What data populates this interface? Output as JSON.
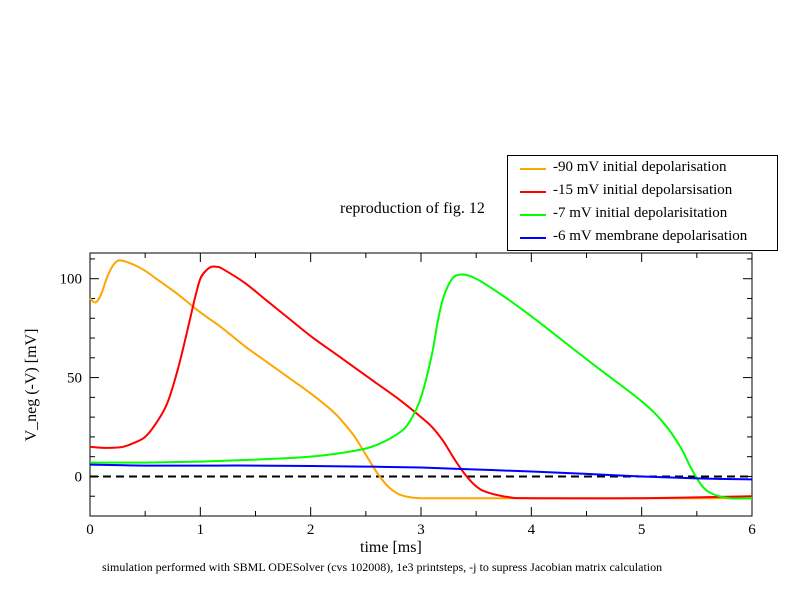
{
  "chart_data": {
    "type": "line",
    "title": "reproduction of fig. 12",
    "xlabel": "time [ms]",
    "ylabel": "V_neg (-V) [mV]",
    "caption": "simulation performed with SBML ODESolver (cvs 102008), 1e3 printsteps, -j to supress Jacobian matrix calculation",
    "xlim": [
      0,
      6
    ],
    "ylim": [
      -20,
      113
    ],
    "xticks": [
      0,
      1,
      2,
      3,
      4,
      5,
      6
    ],
    "yticks": [
      0,
      50,
      100
    ],
    "grid": false,
    "legend_position": "top-right",
    "reference_line": {
      "y": 0,
      "style": "dashed",
      "color": "#000000"
    },
    "series": [
      {
        "name": "-90 mV initial depolarisation",
        "color": "#ffa500",
        "x": [
          0,
          0.05,
          0.1,
          0.15,
          0.2,
          0.25,
          0.3,
          0.4,
          0.5,
          0.6,
          0.7,
          0.8,
          1.0,
          1.2,
          1.4,
          1.6,
          1.8,
          2.0,
          2.2,
          2.3,
          2.4,
          2.5,
          2.6,
          2.7,
          2.8,
          2.9,
          3.0,
          3.2,
          3.6,
          4.0,
          5.0,
          6.0
        ],
        "y": [
          90,
          88,
          92,
          100,
          106,
          109,
          109,
          107,
          104,
          100,
          96,
          92,
          83,
          75,
          66,
          58,
          50,
          42,
          33,
          27,
          20,
          11,
          2,
          -5,
          -9,
          -10.5,
          -11,
          -11,
          -11,
          -11,
          -11,
          -11
        ]
      },
      {
        "name": "-15 mV initial depolarsisation",
        "color": "#ff0000",
        "x": [
          0,
          0.1,
          0.2,
          0.3,
          0.4,
          0.5,
          0.6,
          0.7,
          0.8,
          0.9,
          0.95,
          1.0,
          1.05,
          1.1,
          1.15,
          1.2,
          1.4,
          1.6,
          1.8,
          2.0,
          2.2,
          2.4,
          2.6,
          2.8,
          3.0,
          3.1,
          3.2,
          3.3,
          3.4,
          3.5,
          3.6,
          3.8,
          4.0,
          5.0,
          6.0
        ],
        "y": [
          15,
          14.5,
          14.5,
          15,
          17,
          20,
          27,
          37,
          55,
          78,
          90,
          100,
          104,
          106,
          106,
          105,
          98,
          89,
          80,
          71,
          63,
          55,
          47,
          39,
          30,
          25,
          18,
          9,
          1,
          -5,
          -8,
          -10.5,
          -11,
          -11,
          -10
        ]
      },
      {
        "name": "-7 mV initial depolarisitation",
        "color": "#00ff00",
        "x": [
          0,
          0.5,
          1.0,
          1.5,
          2.0,
          2.4,
          2.6,
          2.8,
          2.9,
          3.0,
          3.1,
          3.15,
          3.2,
          3.25,
          3.3,
          3.35,
          3.4,
          3.5,
          3.7,
          4.0,
          4.3,
          4.6,
          5.0,
          5.2,
          5.35,
          5.45,
          5.55,
          5.65,
          5.8,
          6.0
        ],
        "y": [
          7,
          7,
          7.5,
          8.5,
          10,
          13,
          16,
          22,
          28,
          40,
          62,
          78,
          90,
          97,
          101,
          102,
          102,
          100,
          93,
          81,
          68,
          55,
          38,
          27,
          15,
          4,
          -5,
          -9,
          -11,
          -11
        ]
      },
      {
        "name": "-6 mV membrane depolarisation",
        "color": "#0000ff",
        "x": [
          0,
          0.5,
          1.0,
          1.5,
          2.0,
          2.5,
          3.0,
          3.5,
          4.0,
          4.5,
          5.0,
          5.5,
          6.0
        ],
        "y": [
          6,
          5.5,
          5.5,
          5.5,
          5.3,
          5,
          4.5,
          3.5,
          2.5,
          1.3,
          0,
          -1,
          -1.5
        ]
      }
    ]
  }
}
